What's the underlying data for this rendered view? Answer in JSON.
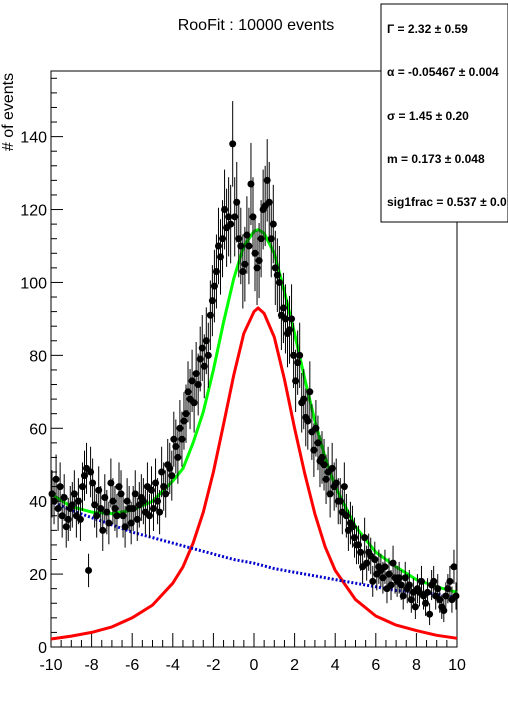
{
  "chart_data": {
    "type": "scatter",
    "title": "RooFit : 10000 events",
    "xlabel": "",
    "ylabel": "# of events",
    "xlim": [
      -10,
      10
    ],
    "ylim": [
      0,
      158
    ],
    "xticks": [
      "-10",
      "-8",
      "-6",
      "-4",
      "-2",
      "0",
      "2",
      "4",
      "6",
      "8",
      "10"
    ],
    "yticks": [
      "0",
      "20",
      "40",
      "60",
      "80",
      "100",
      "120",
      "140"
    ],
    "grid": false,
    "legend": "none",
    "stats_box": {
      "position": "top-right",
      "lines": [
        {
          "name": "Γ",
          "text": "Γ =  2.32  ± 0.59"
        },
        {
          "name": "alpha",
          "text": "α = -0.05467  ± 0.004"
        },
        {
          "name": "sigma",
          "text": "σ =  1.45  ± 0.20"
        },
        {
          "name": "m",
          "text": "m =  0.173  ± 0.048"
        },
        {
          "name": "sig1frac",
          "text": "sig1frac =  0.537  ± 0.0"
        }
      ]
    },
    "series": [
      {
        "kind": "data-points",
        "color": "#000000",
        "x": [
          -9.95,
          -9.85,
          -9.75,
          -9.65,
          -9.55,
          -9.45,
          -9.35,
          -9.25,
          -9.15,
          -9.05,
          -8.95,
          -8.85,
          -8.75,
          -8.65,
          -8.55,
          -8.45,
          -8.35,
          -8.25,
          -8.15,
          -8.05,
          -7.95,
          -7.85,
          -7.75,
          -7.65,
          -7.55,
          -7.45,
          -7.35,
          -7.25,
          -7.15,
          -7.05,
          -6.95,
          -6.85,
          -6.75,
          -6.65,
          -6.55,
          -6.45,
          -6.35,
          -6.25,
          -6.15,
          -6.05,
          -5.95,
          -5.85,
          -5.75,
          -5.65,
          -5.55,
          -5.45,
          -5.35,
          -5.25,
          -5.15,
          -5.05,
          -4.95,
          -4.85,
          -4.75,
          -4.65,
          -4.55,
          -4.45,
          -4.35,
          -4.25,
          -4.15,
          -4.05,
          -3.95,
          -3.85,
          -3.75,
          -3.65,
          -3.55,
          -3.45,
          -3.35,
          -3.25,
          -3.15,
          -3.05,
          -2.95,
          -2.85,
          -2.75,
          -2.65,
          -2.55,
          -2.45,
          -2.35,
          -2.25,
          -2.15,
          -2.05,
          -1.95,
          -1.85,
          -1.75,
          -1.65,
          -1.55,
          -1.45,
          -1.35,
          -1.25,
          -1.15,
          -1.05,
          -0.95,
          -0.85,
          -0.75,
          -0.65,
          -0.55,
          -0.45,
          -0.35,
          -0.25,
          -0.15,
          -0.05,
          0.05,
          0.15,
          0.25,
          0.35,
          0.45,
          0.55,
          0.65,
          0.75,
          0.85,
          0.95,
          1.05,
          1.15,
          1.25,
          1.35,
          1.45,
          1.55,
          1.65,
          1.75,
          1.85,
          1.95,
          2.05,
          2.15,
          2.25,
          2.35,
          2.45,
          2.55,
          2.65,
          2.75,
          2.85,
          2.95,
          3.05,
          3.15,
          3.25,
          3.35,
          3.45,
          3.55,
          3.65,
          3.75,
          3.85,
          3.95,
          4.05,
          4.15,
          4.25,
          4.35,
          4.45,
          4.55,
          4.65,
          4.75,
          4.85,
          4.95,
          5.05,
          5.15,
          5.25,
          5.35,
          5.45,
          5.55,
          5.65,
          5.75,
          5.85,
          5.95,
          6.05,
          6.15,
          6.25,
          6.35,
          6.45,
          6.55,
          6.65,
          6.75,
          6.85,
          6.95,
          7.05,
          7.15,
          7.25,
          7.35,
          7.45,
          7.55,
          7.65,
          7.75,
          7.85,
          7.95,
          8.05,
          8.15,
          8.25,
          8.35,
          8.45,
          8.55,
          8.65,
          8.75,
          8.85,
          8.95,
          9.05,
          9.15,
          9.25,
          9.35,
          9.45,
          9.55,
          9.65,
          9.75,
          9.85,
          9.95
        ],
        "y": [
          42,
          40,
          46,
          38,
          44,
          36,
          41,
          33,
          35,
          38,
          39,
          42,
          36,
          40,
          35,
          44,
          47,
          49,
          21,
          48,
          45,
          39,
          36,
          43,
          38,
          32,
          41,
          37,
          34,
          45,
          40,
          38,
          36,
          44,
          42,
          36,
          33,
          40,
          38,
          34,
          38,
          42,
          35,
          39,
          41,
          40,
          37,
          44,
          36,
          43,
          38,
          45,
          40,
          37,
          48,
          44,
          42,
          50,
          49,
          47,
          57,
          55,
          52,
          60,
          57,
          62,
          64,
          70,
          68,
          73,
          67,
          75,
          72,
          79,
          82,
          77,
          84,
          80,
          91,
          95,
          99,
          103,
          110,
          107,
          112,
          120,
          115,
          118,
          116,
          138,
          118,
          122,
          112,
          110,
          103,
          105,
          113,
          110,
          127,
          118,
          108,
          104,
          106,
          112,
          120,
          121,
          128,
          122,
          112,
          116,
          104,
          102,
          100,
          91,
          93,
          90,
          86,
          87,
          90,
          80,
          73,
          78,
          80,
          67,
          68,
          63,
          62,
          70,
          59,
          54,
          60,
          56,
          51,
          52,
          50,
          46,
          48,
          42,
          49,
          44,
          45,
          40,
          40,
          37,
          44,
          36,
          32,
          34,
          33,
          30,
          28,
          28,
          26,
          22,
          30,
          23,
          26,
          25,
          18,
          24,
          20,
          22,
          21,
          19,
          22,
          16,
          20,
          17,
          23,
          19,
          18,
          19,
          17,
          14,
          19,
          16,
          17,
          13,
          15,
          11,
          16,
          15,
          18,
          14,
          12,
          15,
          9,
          17,
          18,
          14,
          16,
          13,
          11,
          10,
          14,
          16,
          18,
          13,
          22,
          14
        ]
      },
      {
        "kind": "total-fit",
        "color": "#00ff00",
        "x": [
          -10,
          -9,
          -8,
          -7,
          -6,
          -5,
          -4,
          -3.5,
          -3,
          -2.5,
          -2,
          -1.5,
          -1,
          -0.5,
          0,
          0.2,
          0.5,
          1,
          1.5,
          2,
          2.5,
          3,
          3.5,
          4,
          5,
          6,
          7,
          8,
          9,
          10
        ],
        "y": [
          42,
          38.5,
          37,
          36.6,
          37.5,
          40,
          45.5,
          49,
          56,
          64.5,
          76,
          89,
          101,
          110,
          114,
          114.5,
          113.5,
          108,
          97.5,
          86,
          73.5,
          62,
          52,
          44,
          33,
          26,
          22,
          18.5,
          16.5,
          15
        ]
      },
      {
        "kind": "signal",
        "color": "#ff0000",
        "x": [
          -10,
          -9,
          -8,
          -7,
          -6,
          -5,
          -4,
          -3.5,
          -3,
          -2.5,
          -2,
          -1.5,
          -1,
          -0.5,
          0,
          0.2,
          0.5,
          1,
          1.5,
          2,
          2.5,
          3,
          3.5,
          4,
          5,
          6,
          7,
          8,
          9,
          10
        ],
        "y": [
          2.2,
          3,
          4,
          5.5,
          8,
          11.5,
          17.5,
          22,
          28.5,
          37,
          48,
          61,
          74.5,
          86,
          92,
          93,
          91.5,
          85,
          73.5,
          60,
          47.5,
          36.5,
          27.5,
          21,
          13,
          8.5,
          6,
          4.5,
          3.2,
          2.4
        ]
      },
      {
        "kind": "background",
        "color": "#0000cc",
        "x": [
          -10,
          -9,
          -8,
          -7,
          -6,
          -5,
          -4,
          -3,
          -2,
          -1,
          0,
          1,
          2,
          3,
          4,
          5,
          6,
          7,
          8,
          9,
          10
        ],
        "y": [
          40,
          37.5,
          35.5,
          33.5,
          31.5,
          30,
          28.5,
          27,
          25.5,
          24,
          23,
          21.5,
          20.5,
          19.5,
          18.5,
          17.5,
          16.5,
          15.5,
          15,
          14.5,
          13.5
        ]
      }
    ]
  }
}
